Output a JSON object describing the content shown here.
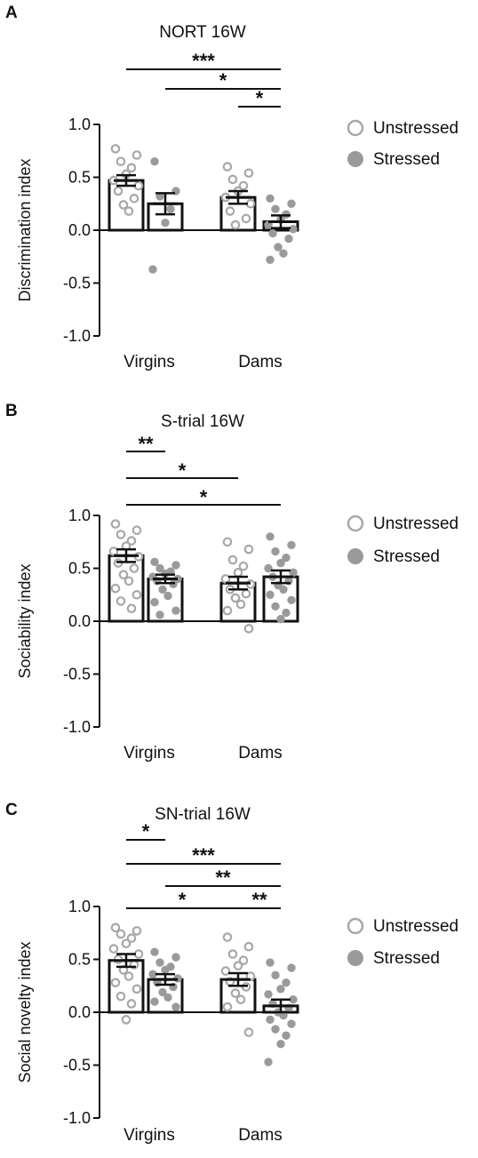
{
  "chart_data": [
    {
      "panel": "A",
      "type": "bar",
      "title": "NORT 16W",
      "ylabel": "Discrimination  index",
      "ylim": [
        -1.0,
        1.0
      ],
      "yticks": [
        "1.0",
        "0.5",
        "0.0",
        "-0.5",
        "-1.0"
      ],
      "yticks_values": [
        1.0,
        0.5,
        0.0,
        -0.5,
        -1.0
      ],
      "categories": [
        "Virgins",
        "Dams"
      ],
      "legend": {
        "position": "right",
        "entries": [
          "Unstressed",
          "Stressed"
        ]
      },
      "series": [
        {
          "name": "Unstressed",
          "values": [
            0.47,
            0.31
          ],
          "sem": [
            0.05,
            0.06
          ],
          "points": [
            [
              0.77,
              0.71,
              0.65,
              0.59,
              0.53,
              0.47,
              0.42,
              0.37,
              0.3,
              0.24,
              0.18
            ],
            [
              0.6,
              0.54,
              0.48,
              0.42,
              0.37,
              0.31,
              0.25,
              0.18,
              0.11,
              0.05
            ]
          ]
        },
        {
          "name": "Stressed",
          "values": [
            0.25,
            0.08
          ],
          "sem": [
            0.1,
            0.06
          ],
          "points": [
            [
              0.65,
              0.37,
              0.32,
              0.2,
              0.07,
              -0.37
            ],
            [
              0.3,
              0.25,
              0.2,
              0.15,
              0.1,
              0.05,
              0.01,
              -0.03,
              -0.08,
              -0.16,
              -0.22,
              -0.28
            ]
          ]
        }
      ],
      "significance": [
        {
          "from": 0,
          "to": 3,
          "label": "***"
        },
        {
          "from": 1,
          "to": 3,
          "label": "*"
        },
        {
          "from": 2,
          "to": 3,
          "label": "*"
        }
      ]
    },
    {
      "panel": "B",
      "type": "bar",
      "title": "S-trial 16W",
      "ylabel": "Sociability index",
      "ylim": [
        -1.0,
        1.0
      ],
      "yticks": [
        "1.0",
        "0.5",
        "0.0",
        "-0.5",
        "-1.0"
      ],
      "yticks_values": [
        1.0,
        0.5,
        0.0,
        -0.5,
        -1.0
      ],
      "categories": [
        "Virgins",
        "Dams"
      ],
      "legend": {
        "position": "right",
        "entries": [
          "Unstressed",
          "Stressed"
        ]
      },
      "series": [
        {
          "name": "Unstressed",
          "values": [
            0.62,
            0.36
          ],
          "sem": [
            0.06,
            0.06
          ],
          "points": [
            [
              0.92,
              0.86,
              0.82,
              0.76,
              0.71,
              0.66,
              0.61,
              0.55,
              0.5,
              0.44,
              0.38,
              0.31,
              0.25,
              0.19,
              0.12
            ],
            [
              0.75,
              0.68,
              0.58,
              0.52,
              0.46,
              0.4,
              0.35,
              0.3,
              0.26,
              0.22,
              0.16,
              0.1,
              -0.07
            ]
          ]
        },
        {
          "name": "Stressed",
          "values": [
            0.4,
            0.42
          ],
          "sem": [
            0.04,
            0.06
          ],
          "points": [
            [
              0.56,
              0.53,
              0.5,
              0.47,
              0.45,
              0.42,
              0.4,
              0.38,
              0.35,
              0.3,
              0.24,
              0.18,
              0.1,
              0.06
            ],
            [
              0.8,
              0.72,
              0.66,
              0.6,
              0.55,
              0.5,
              0.46,
              0.42,
              0.38,
              0.34,
              0.3,
              0.25,
              0.2,
              0.14,
              0.08,
              0.02
            ]
          ]
        }
      ],
      "significance": [
        {
          "from": 0,
          "to": 1,
          "label": "**"
        },
        {
          "from": 0,
          "to": 2,
          "label": "*"
        },
        {
          "from": 0,
          "to": 3,
          "label": "*"
        }
      ]
    },
    {
      "panel": "C",
      "type": "bar",
      "title": "SN-trial 16W",
      "ylabel": "Social novelty index",
      "ylim": [
        -1.0,
        1.0
      ],
      "yticks": [
        "1.0",
        "0.5",
        "0.0",
        "-0.5",
        "-1.0"
      ],
      "yticks_values": [
        1.0,
        0.5,
        0.0,
        -0.5,
        -1.0
      ],
      "categories": [
        "Virgins",
        "Dams"
      ],
      "legend": {
        "position": "right",
        "entries": [
          "Unstressed",
          "Stressed"
        ]
      },
      "series": [
        {
          "name": "Unstressed",
          "values": [
            0.49,
            0.31
          ],
          "sem": [
            0.06,
            0.06
          ],
          "points": [
            [
              0.8,
              0.77,
              0.74,
              0.7,
              0.65,
              0.6,
              0.55,
              0.5,
              0.45,
              0.4,
              0.34,
              0.28,
              0.22,
              0.15,
              0.08,
              -0.07
            ],
            [
              0.71,
              0.62,
              0.55,
              0.49,
              0.44,
              0.39,
              0.34,
              0.29,
              0.24,
              0.18,
              0.12,
              0.05,
              -0.19
            ]
          ]
        },
        {
          "name": "Stressed",
          "values": [
            0.31,
            0.06
          ],
          "sem": [
            0.05,
            0.06
          ],
          "points": [
            [
              0.57,
              0.52,
              0.47,
              0.43,
              0.4,
              0.36,
              0.32,
              0.28,
              0.24,
              0.19,
              0.14,
              0.1,
              0.05
            ],
            [
              0.47,
              0.42,
              0.35,
              0.28,
              0.22,
              0.17,
              0.12,
              0.08,
              0.04,
              0.0,
              -0.03,
              -0.07,
              -0.11,
              -0.16,
              -0.22,
              -0.3,
              -0.47
            ]
          ]
        }
      ],
      "significance": [
        {
          "from": 0,
          "to": 1,
          "label": "*"
        },
        {
          "from": 0,
          "to": 3,
          "label": "***"
        },
        {
          "from": 1,
          "to": 3,
          "label": "**"
        },
        {
          "from": 0,
          "to": 2,
          "label": "*"
        },
        {
          "from": 2,
          "to": 3,
          "label": "**"
        }
      ]
    }
  ],
  "colors": {
    "unstressed_marker": "#a8a8a8",
    "stressed_marker": "#9a9a9a",
    "axis": "#111111"
  }
}
